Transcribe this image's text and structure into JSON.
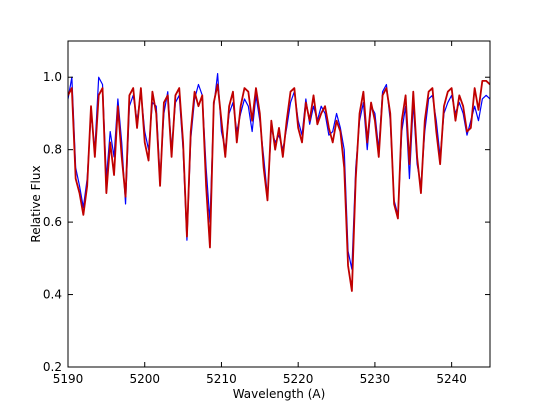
{
  "chart_data": {
    "type": "line",
    "xlabel": "Wavelength (A)",
    "ylabel": "Relative Flux",
    "x": [
      5190,
      5190.5,
      5191,
      5191.5,
      5192,
      5192.5,
      5193,
      5193.5,
      5194,
      5194.5,
      5195,
      5195.5,
      5196,
      5196.5,
      5197,
      5197.5,
      5198,
      5198.5,
      5199,
      5199.5,
      5200,
      5200.5,
      5201,
      5201.5,
      5202,
      5202.5,
      5203,
      5203.5,
      5204,
      5204.5,
      5205,
      5205.5,
      5206,
      5206.5,
      5207,
      5207.5,
      5208,
      5208.5,
      5209,
      5209.5,
      5210,
      5210.5,
      5211,
      5211.5,
      5212,
      5212.5,
      5213,
      5213.5,
      5214,
      5214.5,
      5215,
      5215.5,
      5216,
      5216.5,
      5217,
      5217.5,
      5218,
      5218.5,
      5219,
      5219.5,
      5220,
      5220.5,
      5221,
      5221.5,
      5222,
      5222.5,
      5223,
      5223.5,
      5224,
      5224.5,
      5225,
      5225.5,
      5226,
      5226.5,
      5227,
      5227.5,
      5228,
      5228.5,
      5229,
      5229.5,
      5230,
      5230.5,
      5231,
      5231.5,
      5232,
      5232.5,
      5233,
      5233.5,
      5234,
      5234.5,
      5235,
      5235.5,
      5236,
      5236.5,
      5237,
      5237.5,
      5238,
      5238.5,
      5239,
      5239.5,
      5240,
      5240.5,
      5241,
      5241.5,
      5242,
      5242.5,
      5243,
      5243.5,
      5244,
      5244.5,
      5245
    ],
    "series": [
      {
        "color": "#0000ff",
        "values": [
          0.94,
          1.0,
          0.75,
          0.7,
          0.64,
          0.72,
          0.9,
          0.8,
          1.0,
          0.98,
          0.72,
          0.85,
          0.78,
          0.94,
          0.82,
          0.65,
          0.92,
          0.95,
          0.88,
          0.96,
          0.85,
          0.8,
          0.93,
          0.92,
          0.72,
          0.9,
          0.96,
          0.8,
          0.93,
          0.95,
          0.8,
          0.55,
          0.83,
          0.94,
          0.98,
          0.95,
          0.75,
          0.6,
          0.92,
          1.01,
          0.85,
          0.8,
          0.9,
          0.93,
          0.85,
          0.9,
          0.94,
          0.92,
          0.85,
          0.95,
          0.88,
          0.78,
          0.67,
          0.86,
          0.82,
          0.84,
          0.8,
          0.86,
          0.93,
          0.96,
          0.88,
          0.84,
          0.94,
          0.87,
          0.92,
          0.88,
          0.92,
          0.9,
          0.84,
          0.85,
          0.9,
          0.86,
          0.8,
          0.52,
          0.47,
          0.75,
          0.88,
          0.93,
          0.8,
          0.92,
          0.9,
          0.8,
          0.96,
          0.98,
          0.88,
          0.66,
          0.62,
          0.85,
          0.92,
          0.72,
          0.93,
          0.76,
          0.7,
          0.85,
          0.94,
          0.95,
          0.88,
          0.78,
          0.9,
          0.93,
          0.95,
          0.9,
          0.93,
          0.9,
          0.84,
          0.88,
          0.92,
          0.88,
          0.94,
          0.95,
          0.94
        ]
      },
      {
        "color": "#c00000",
        "values": [
          0.95,
          0.97,
          0.72,
          0.68,
          0.62,
          0.7,
          0.92,
          0.78,
          0.95,
          0.97,
          0.68,
          0.82,
          0.73,
          0.92,
          0.78,
          0.67,
          0.95,
          0.97,
          0.86,
          0.97,
          0.82,
          0.77,
          0.96,
          0.9,
          0.7,
          0.93,
          0.95,
          0.78,
          0.95,
          0.97,
          0.82,
          0.56,
          0.85,
          0.96,
          0.92,
          0.95,
          0.7,
          0.53,
          0.93,
          0.98,
          0.88,
          0.78,
          0.92,
          0.96,
          0.82,
          0.92,
          0.97,
          0.96,
          0.88,
          0.97,
          0.9,
          0.75,
          0.66,
          0.88,
          0.8,
          0.86,
          0.78,
          0.88,
          0.96,
          0.97,
          0.86,
          0.82,
          0.93,
          0.88,
          0.95,
          0.87,
          0.9,
          0.92,
          0.86,
          0.82,
          0.88,
          0.85,
          0.75,
          0.48,
          0.41,
          0.72,
          0.9,
          0.96,
          0.82,
          0.93,
          0.88,
          0.78,
          0.95,
          0.97,
          0.9,
          0.65,
          0.61,
          0.88,
          0.95,
          0.76,
          0.96,
          0.78,
          0.68,
          0.88,
          0.96,
          0.97,
          0.85,
          0.76,
          0.92,
          0.96,
          0.97,
          0.88,
          0.95,
          0.92,
          0.85,
          0.86,
          0.97,
          0.91,
          0.99,
          0.99,
          0.98
        ]
      }
    ],
    "xlim": [
      5190,
      5245
    ],
    "xticks": [
      5190,
      5200,
      5210,
      5220,
      5230,
      5240
    ],
    "ylim": [
      0.2,
      1.1
    ],
    "yticks": [
      0.2,
      0.4,
      0.6,
      0.8,
      {
        "value": 1,
        "label": "1.0"
      }
    ],
    "grid": false
  }
}
